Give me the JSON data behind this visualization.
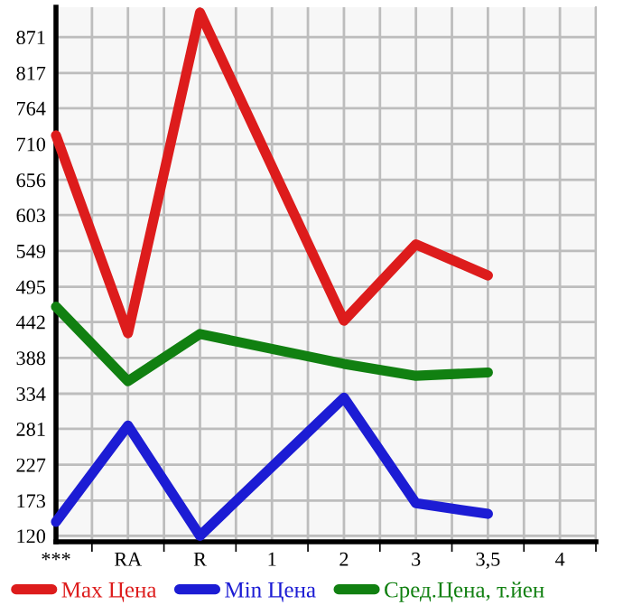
{
  "chart_data": {
    "type": "line",
    "categories": [
      "***",
      "RA",
      "R",
      "1",
      "2",
      "3",
      "3,5",
      "4"
    ],
    "series": [
      {
        "name": "Max Цена",
        "color": "#dd1c1c",
        "values": [
          723,
          425,
          908,
          null,
          444,
          559,
          512,
          null
        ]
      },
      {
        "name": "Min Цена",
        "color": "#1c1cd4",
        "values": [
          141,
          286,
          120,
          null,
          328,
          169,
          153,
          null
        ]
      },
      {
        "name": "Сред.Цена, т.йен",
        "color": "#118011",
        "values": [
          465,
          353,
          424,
          null,
          379,
          361,
          366,
          null
        ]
      }
    ],
    "ylim": [
      111,
      916
    ],
    "yticks": [
      120,
      173,
      227,
      281,
      334,
      388,
      442,
      495,
      549,
      603,
      656,
      710,
      764,
      817,
      871
    ],
    "grid": true,
    "legend": "bottom",
    "marker": "none",
    "line_style": "solid"
  }
}
